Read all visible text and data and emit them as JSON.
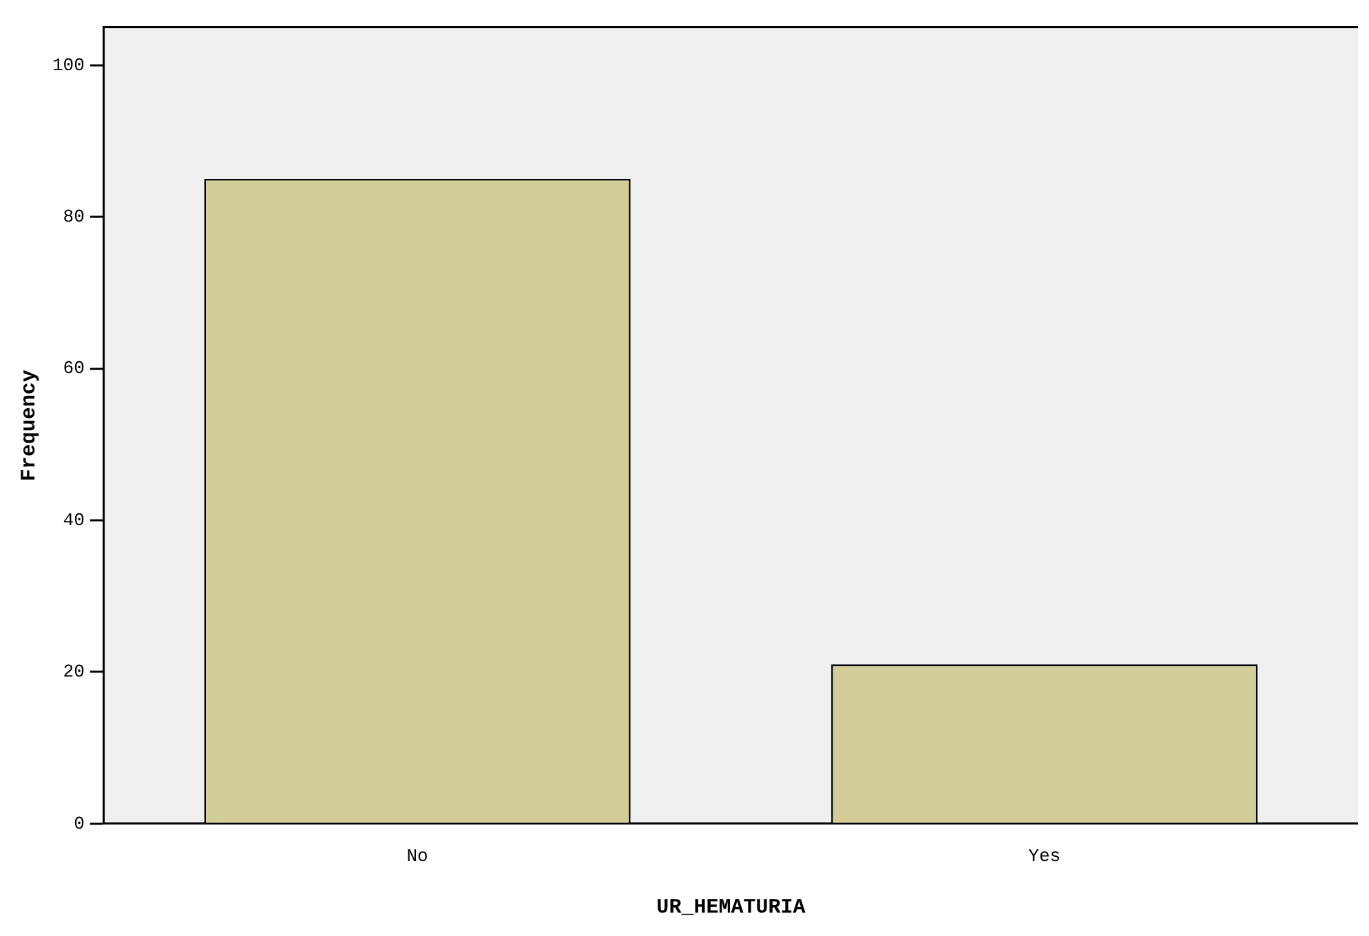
{
  "chart_data": {
    "type": "bar",
    "xlabel": "UR_HEMATURIA",
    "ylabel": "Frequency",
    "categories": [
      "No",
      "Yes"
    ],
    "values": [
      85,
      21
    ],
    "color": "#d3cd98",
    "ylim": [
      0,
      105
    ],
    "yticks": [
      0,
      20,
      40,
      60,
      80,
      100
    ],
    "grid": false,
    "legend": false
  }
}
